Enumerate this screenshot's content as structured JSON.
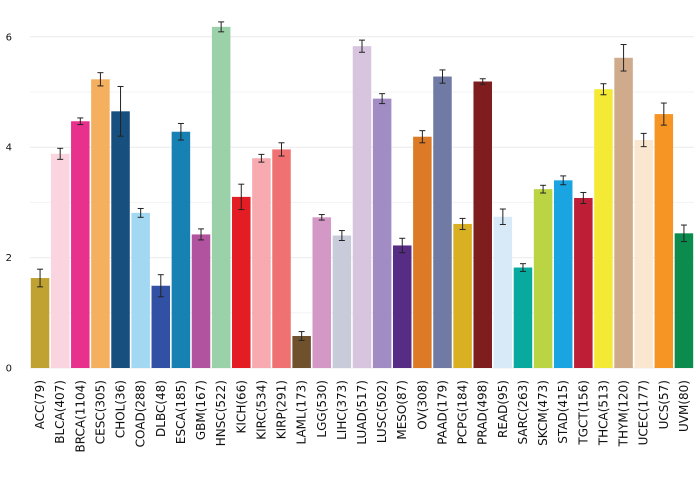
{
  "chart_data": {
    "type": "bar",
    "title": "",
    "xlabel": "",
    "ylabel": "",
    "ylim": [
      0,
      6.3
    ],
    "yticks": [
      0,
      2,
      4,
      6
    ],
    "grid": true,
    "legend": "none",
    "categories": [
      "ACC(79)",
      "BLCA(407)",
      "BRCA(1104)",
      "CESC(305)",
      "CHOL(36)",
      "COAD(288)",
      "DLBC(48)",
      "ESCA(185)",
      "GBM(167)",
      "HNSC(522)",
      "KICH(66)",
      "KIRC(534)",
      "KIRP(291)",
      "LAML(173)",
      "LGG(530)",
      "LIHC(373)",
      "LUAD(517)",
      "LUSC(502)",
      "MESO(87)",
      "OV(308)",
      "PAAD(179)",
      "PCPG(184)",
      "PRAD(498)",
      "READ(95)",
      "SARC(263)",
      "SKCM(473)",
      "STAD(415)",
      "TGCT(156)",
      "THCA(513)",
      "THYM(120)",
      "UCEC(177)",
      "UCS(57)",
      "UVM(80)"
    ],
    "values": [
      1.63,
      3.88,
      4.47,
      5.23,
      4.65,
      2.81,
      1.49,
      4.28,
      2.42,
      6.18,
      3.1,
      3.8,
      3.96,
      0.58,
      2.73,
      2.4,
      5.83,
      4.88,
      2.22,
      4.19,
      5.28,
      2.61,
      5.19,
      2.74,
      1.82,
      3.24,
      3.4,
      3.08,
      5.05,
      5.62,
      4.13,
      4.6,
      2.44
    ],
    "errors": [
      0.16,
      0.1,
      0.06,
      0.12,
      0.45,
      0.08,
      0.2,
      0.15,
      0.1,
      0.09,
      0.23,
      0.07,
      0.12,
      0.08,
      0.05,
      0.09,
      0.11,
      0.09,
      0.13,
      0.11,
      0.12,
      0.1,
      0.05,
      0.14,
      0.07,
      0.07,
      0.08,
      0.1,
      0.1,
      0.24,
      0.12,
      0.2,
      0.15
    ],
    "colors": [
      "#C0A232",
      "#FAD5DF",
      "#E7318D",
      "#F4B05E",
      "#174F7E",
      "#A2D8F2",
      "#3251A4",
      "#1781B3",
      "#B253A0",
      "#9AD1A9",
      "#E41C23",
      "#F7AAB0",
      "#EF7172",
      "#70512E",
      "#D498C6",
      "#C8CCDA",
      "#D7C4DF",
      "#A18DC3",
      "#572C85",
      "#DD7A26",
      "#6F7BA4",
      "#D8B022",
      "#7E1C1E",
      "#D8EAF8",
      "#08A99E",
      "#BBD443",
      "#1BA4E2",
      "#BE1F36",
      "#F4EA36",
      "#CFAB8C",
      "#FAE7D0",
      "#F69524",
      "#0B8C4E"
    ]
  }
}
